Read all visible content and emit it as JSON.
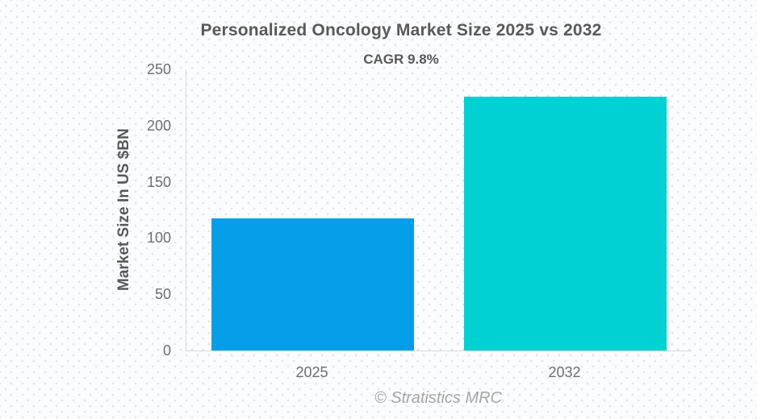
{
  "chart_data": {
    "type": "bar",
    "title": "Personalized Oncology Market Size 2025 vs 2032",
    "subtitle": "CAGR 9.8%",
    "categories": [
      "2025",
      "2032"
    ],
    "values": [
      117.3,
      225.7
    ],
    "xlabel": "",
    "ylabel": "Market Size In US $BN",
    "ylim": [
      0,
      250
    ],
    "yticks": [
      0,
      50,
      100,
      150,
      200,
      250
    ],
    "bar_colors": [
      "#059fe9",
      "#00d1d2"
    ],
    "grid": false,
    "legend": false,
    "source_caption": "© Stratistics MRC"
  },
  "colors": {
    "bar_2025": "#059fe9",
    "bar_2032": "#00d1d2",
    "axis_line": "#d9d9d9",
    "title_text": "#595959",
    "tick_text": "#6e6e6e",
    "caption_text": "#a6a6a6"
  }
}
